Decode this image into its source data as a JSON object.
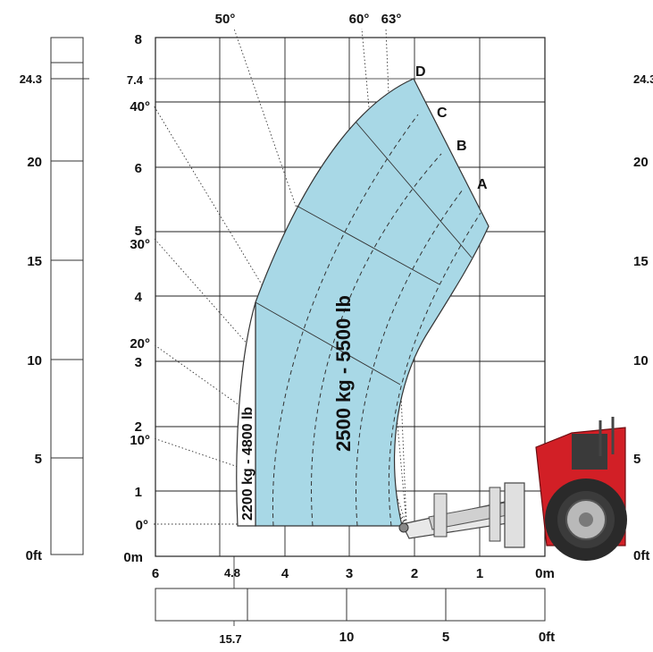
{
  "left_axis_m": [
    "8",
    "7.4",
    "6",
    "5",
    "4",
    "3",
    "2",
    "1",
    "0m"
  ],
  "left_axis_ft": [
    "24.3",
    "20",
    "15",
    "10",
    "5",
    "0ft"
  ],
  "right_axis_ft": [
    "24.3",
    "20",
    "15",
    "10",
    "5",
    "0ft"
  ],
  "bottom_axis_m": [
    "6",
    "4.8",
    "4",
    "3",
    "2",
    "1",
    "0m"
  ],
  "bottom_axis_ft": [
    "15.7",
    "10",
    "5",
    "0ft"
  ],
  "top_angles": [
    "50°",
    "60°",
    "63°"
  ],
  "left_angles": [
    "40°",
    "30°",
    "20°",
    "10°",
    "0°"
  ],
  "extension_letters": [
    "A",
    "B",
    "C",
    "D"
  ],
  "load_main": "2500 kg - 5500 lb",
  "load_outer": "2200 kg - 4800 lb",
  "colors": {
    "zone_fill": "#a8d8e6",
    "zone_stroke": "#333333",
    "grid": "#222222",
    "machine_red": "#d21f26"
  }
}
